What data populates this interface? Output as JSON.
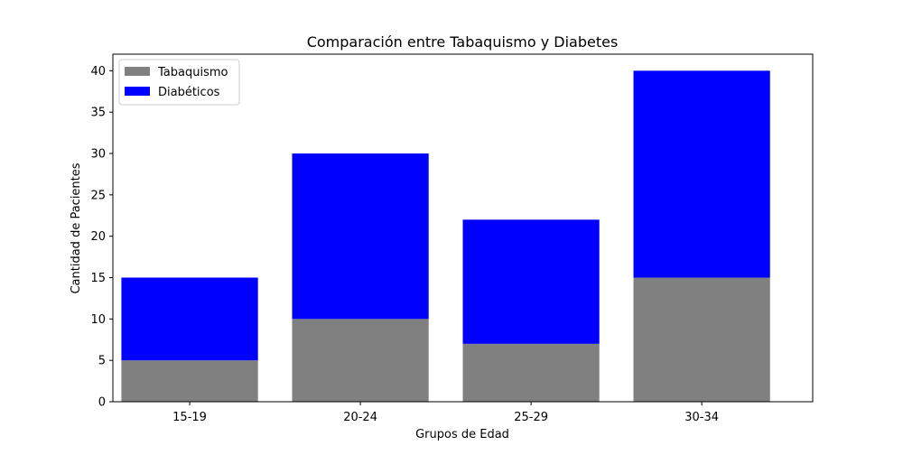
{
  "chart_data": {
    "type": "bar",
    "stacked": true,
    "title": "Comparación entre Tabaquismo y Diabetes",
    "xlabel": "Grupos de Edad",
    "ylabel": "Cantidad de Pacientes",
    "categories": [
      "15-19",
      "20-24",
      "25-29",
      "30-34"
    ],
    "ylim": [
      0,
      42
    ],
    "yticks": [
      0,
      5,
      10,
      15,
      20,
      25,
      30,
      35,
      40
    ],
    "grid": false,
    "legend_position": "top-left",
    "series": [
      {
        "name": "Tabaquismo",
        "values": [
          5,
          10,
          7,
          15
        ],
        "color": "#808080"
      },
      {
        "name": "Diabéticos",
        "values": [
          10,
          20,
          15,
          25
        ],
        "color": "#0000ff"
      }
    ]
  }
}
